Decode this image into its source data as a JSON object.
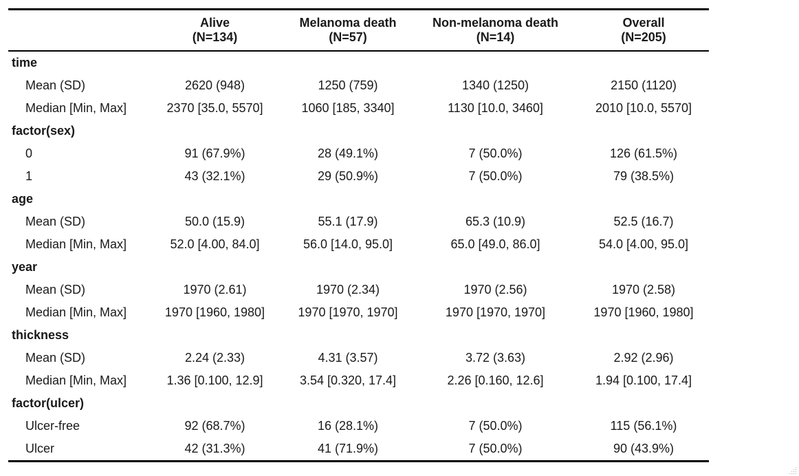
{
  "table": {
    "columns": [
      {
        "name": "Alive",
        "n": "(N=134)"
      },
      {
        "name": "Melanoma death",
        "n": "(N=57)"
      },
      {
        "name": "Non-melanoma death",
        "n": "(N=14)"
      },
      {
        "name": "Overall",
        "n": "(N=205)"
      }
    ],
    "rows": [
      {
        "type": "var",
        "label": "time",
        "values": []
      },
      {
        "type": "stat",
        "label": "Mean (SD)",
        "values": [
          "2620 (948)",
          "1250 (759)",
          "1340 (1250)",
          "2150 (1120)"
        ]
      },
      {
        "type": "stat",
        "label": "Median [Min, Max]",
        "values": [
          "2370 [35.0, 5570]",
          "1060 [185, 3340]",
          "1130 [10.0, 3460]",
          "2010 [10.0, 5570]"
        ]
      },
      {
        "type": "var",
        "label": "factor(sex)",
        "values": []
      },
      {
        "type": "stat",
        "label": "0",
        "values": [
          "91 (67.9%)",
          "28 (49.1%)",
          "7 (50.0%)",
          "126 (61.5%)"
        ]
      },
      {
        "type": "stat",
        "label": "1",
        "values": [
          "43 (32.1%)",
          "29 (50.9%)",
          "7 (50.0%)",
          "79 (38.5%)"
        ]
      },
      {
        "type": "var",
        "label": "age",
        "values": []
      },
      {
        "type": "stat",
        "label": "Mean (SD)",
        "values": [
          "50.0 (15.9)",
          "55.1 (17.9)",
          "65.3 (10.9)",
          "52.5 (16.7)"
        ]
      },
      {
        "type": "stat",
        "label": "Median [Min, Max]",
        "values": [
          "52.0 [4.00, 84.0]",
          "56.0 [14.0, 95.0]",
          "65.0 [49.0, 86.0]",
          "54.0 [4.00, 95.0]"
        ]
      },
      {
        "type": "var",
        "label": "year",
        "values": []
      },
      {
        "type": "stat",
        "label": "Mean (SD)",
        "values": [
          "1970 (2.61)",
          "1970 (2.34)",
          "1970 (2.56)",
          "1970 (2.58)"
        ]
      },
      {
        "type": "stat",
        "label": "Median [Min, Max]",
        "values": [
          "1970 [1960, 1980]",
          "1970 [1970, 1970]",
          "1970 [1970, 1970]",
          "1970 [1960, 1980]"
        ]
      },
      {
        "type": "var",
        "label": "thickness",
        "values": []
      },
      {
        "type": "stat",
        "label": "Mean (SD)",
        "values": [
          "2.24 (2.33)",
          "4.31 (3.57)",
          "3.72 (3.63)",
          "2.92 (2.96)"
        ]
      },
      {
        "type": "stat",
        "label": "Median [Min, Max]",
        "values": [
          "1.36 [0.100, 12.9]",
          "3.54 [0.320, 17.4]",
          "2.26 [0.160, 12.6]",
          "1.94 [0.100, 17.4]"
        ]
      },
      {
        "type": "var",
        "label": "factor(ulcer)",
        "values": []
      },
      {
        "type": "stat",
        "label": "Ulcer-free",
        "values": [
          "92 (68.7%)",
          "16 (28.1%)",
          "7 (50.0%)",
          "115 (56.1%)"
        ]
      },
      {
        "type": "stat",
        "label": "Ulcer",
        "values": [
          "42 (31.3%)",
          "41 (71.9%)",
          "7 (50.0%)",
          "90 (43.9%)"
        ]
      }
    ]
  },
  "icons": {
    "resize_handle": "resize-grip-icon"
  }
}
